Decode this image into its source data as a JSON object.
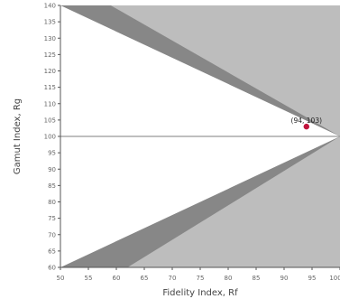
{
  "chart_data": {
    "type": "scatter",
    "title": "",
    "xlabel": "Fidelity Index, Rf",
    "ylabel": "Gamut Index, Rg",
    "xlim": [
      50,
      100
    ],
    "ylim": [
      60,
      140
    ],
    "x_ticks": [
      "50",
      "55",
      "60",
      "65",
      "70",
      "75",
      "80",
      "85",
      "90",
      "95",
      "100"
    ],
    "y_ticks": [
      "140",
      "135",
      "130",
      "125",
      "120",
      "115",
      "110",
      "105",
      "100",
      "95",
      "90",
      "85",
      "80",
      "75",
      "70",
      "65",
      "60"
    ],
    "reference_line": {
      "y": 100
    },
    "regions": [
      {
        "kind": "outside-possible",
        "color": "#bdbdbd"
      },
      {
        "kind": "boundary-band",
        "color": "#878787"
      },
      {
        "kind": "possible",
        "color": "#ffffff"
      }
    ],
    "points": [
      {
        "x": 94,
        "y": 103,
        "label": "(94, 103)",
        "color": "#c0143c"
      }
    ],
    "grid": false,
    "legend": "none"
  },
  "colors": {
    "axis": "#555555",
    "tick_text": "#666666",
    "label_text": "#444444",
    "reference_line": "#999999"
  }
}
